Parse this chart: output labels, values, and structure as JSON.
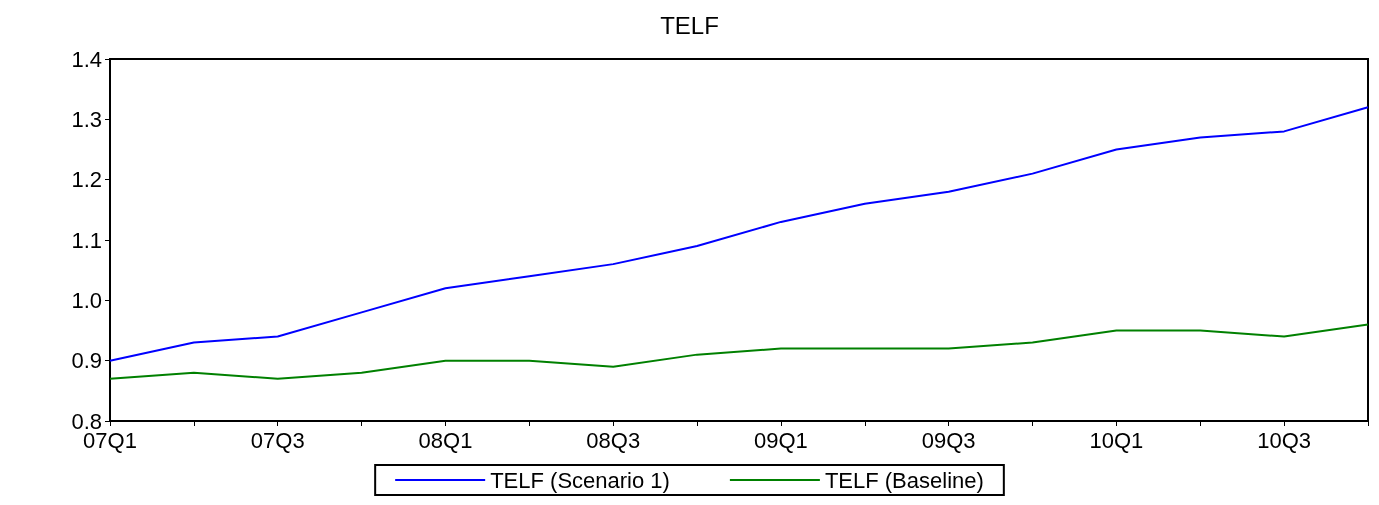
{
  "chart_data": {
    "type": "line",
    "title": "TELF",
    "categories": [
      "07Q1",
      null,
      "07Q3",
      null,
      "08Q1",
      null,
      "08Q3",
      null,
      "09Q1",
      null,
      "09Q3",
      null,
      "10Q1",
      null,
      "10Q3",
      null
    ],
    "series": [
      {
        "name": "TELF (Scenario 1)",
        "color": "#0000ff",
        "values": [
          0.9,
          0.93,
          0.94,
          0.98,
          1.02,
          1.04,
          1.06,
          1.09,
          1.13,
          1.16,
          1.18,
          1.21,
          1.25,
          1.27,
          1.28,
          1.32
        ]
      },
      {
        "name": "TELF (Baseline)",
        "color": "#008000",
        "values": [
          0.87,
          0.88,
          0.87,
          0.88,
          0.9,
          0.9,
          0.89,
          0.91,
          0.92,
          0.92,
          0.92,
          0.93,
          0.95,
          0.95,
          0.94,
          0.96
        ]
      }
    ],
    "ylim": [
      0.8,
      1.4
    ],
    "yticks": [
      0.8,
      0.9,
      {
        "value": 1.0,
        "label": "1.0"
      },
      1.1,
      1.2,
      1.3,
      1.4
    ],
    "grid": false,
    "legend": "bottom",
    "marker": "none",
    "line_style": "solid"
  }
}
